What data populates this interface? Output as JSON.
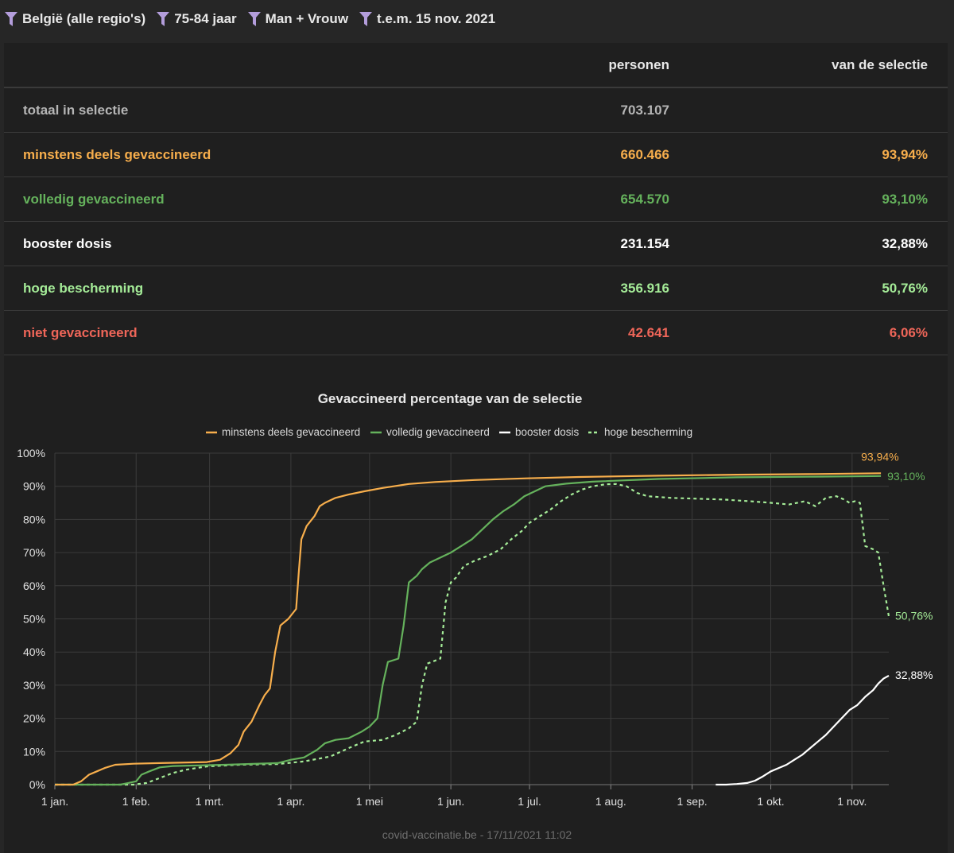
{
  "filters": [
    {
      "label": "België (alle regio's)"
    },
    {
      "label": "75-84 jaar"
    },
    {
      "label": "Man + Vrouw"
    },
    {
      "label": "t.e.m. 15 nov. 2021"
    }
  ],
  "table": {
    "headers": {
      "label": "",
      "persons": "personen",
      "selection": "van de selectie"
    },
    "rows": [
      {
        "label": "totaal in selectie",
        "persons": "703.107",
        "pct": ""
      },
      {
        "label": "minstens deels gevaccineerd",
        "persons": "660.466",
        "pct": "93,94%"
      },
      {
        "label": "volledig gevaccineerd",
        "persons": "654.570",
        "pct": "93,10%"
      },
      {
        "label": "booster dosis",
        "persons": "231.154",
        "pct": "32,88%"
      },
      {
        "label": "hoge bescherming",
        "persons": "356.916",
        "pct": "50,76%"
      },
      {
        "label": "niet gevaccineerd",
        "persons": "42.641",
        "pct": "6,06%"
      }
    ]
  },
  "colors": {
    "partial": "#f7ae4c",
    "full": "#65b25c",
    "booster": "#ffffff",
    "high": "#a5ec98",
    "none": "#ef6659",
    "grid": "#3b3b3b",
    "axis_text": "#e0e0e0"
  },
  "chart_data": {
    "type": "line",
    "title": "Gevaccineerd percentage van de selectie",
    "xlabel": "",
    "ylabel": "",
    "ylim": [
      0,
      100
    ],
    "xlim": [
      0,
      318
    ],
    "x_unit": "day of year 2021",
    "yticks": [
      "0%",
      "10%",
      "20%",
      "30%",
      "40%",
      "50%",
      "60%",
      "70%",
      "80%",
      "90%",
      "100%"
    ],
    "ytick_values": [
      0,
      10,
      20,
      30,
      40,
      50,
      60,
      70,
      80,
      90,
      100
    ],
    "xticks": [
      {
        "label": "1 jan.",
        "day": 0
      },
      {
        "label": "1 feb.",
        "day": 31
      },
      {
        "label": "1 mrt.",
        "day": 59
      },
      {
        "label": "1 apr.",
        "day": 90
      },
      {
        "label": "1 mei",
        "day": 120
      },
      {
        "label": "1 jun.",
        "day": 151
      },
      {
        "label": "1 jul.",
        "day": 181
      },
      {
        "label": "1 aug.",
        "day": 212
      },
      {
        "label": "1 sep.",
        "day": 243
      },
      {
        "label": "1 okt.",
        "day": 273
      },
      {
        "label": "1 nov.",
        "day": 304
      }
    ],
    "legend": "top-center",
    "series": [
      {
        "key": "partial",
        "name": "minstens deels gevaccineerd",
        "dash": false,
        "end_label": "93,94%",
        "points": [
          [
            0,
            0
          ],
          [
            7,
            0
          ],
          [
            10,
            1
          ],
          [
            13,
            3
          ],
          [
            16,
            4
          ],
          [
            19,
            5
          ],
          [
            23,
            6
          ],
          [
            30,
            6.3
          ],
          [
            40,
            6.5
          ],
          [
            58,
            6.8
          ],
          [
            63,
            7.5
          ],
          [
            67,
            9.5
          ],
          [
            70,
            12
          ],
          [
            72,
            16
          ],
          [
            75,
            19
          ],
          [
            78,
            24
          ],
          [
            80,
            27
          ],
          [
            82,
            29
          ],
          [
            84,
            40
          ],
          [
            86,
            48
          ],
          [
            89,
            50
          ],
          [
            92,
            53
          ],
          [
            93,
            64
          ],
          [
            94,
            74
          ],
          [
            96,
            78
          ],
          [
            99,
            81
          ],
          [
            101,
            84
          ],
          [
            103,
            85
          ],
          [
            107,
            86.5
          ],
          [
            112,
            87.5
          ],
          [
            118,
            88.5
          ],
          [
            125,
            89.5
          ],
          [
            135,
            90.7
          ],
          [
            145,
            91.3
          ],
          [
            160,
            91.9
          ],
          [
            180,
            92.4
          ],
          [
            200,
            92.8
          ],
          [
            230,
            93.2
          ],
          [
            260,
            93.5
          ],
          [
            290,
            93.7
          ],
          [
            315,
            93.94
          ]
        ]
      },
      {
        "key": "full",
        "name": "volledig gevaccineerd",
        "dash": false,
        "end_label": "93,10%",
        "points": [
          [
            0,
            0
          ],
          [
            25,
            0
          ],
          [
            28,
            0.5
          ],
          [
            31,
            1
          ],
          [
            33,
            3
          ],
          [
            36,
            4
          ],
          [
            40,
            5.2
          ],
          [
            45,
            5.6
          ],
          [
            55,
            5.8
          ],
          [
            65,
            6
          ],
          [
            85,
            6.5
          ],
          [
            90,
            7.5
          ],
          [
            95,
            8.2
          ],
          [
            100,
            10.5
          ],
          [
            103,
            12.5
          ],
          [
            107,
            13.5
          ],
          [
            112,
            14
          ],
          [
            117,
            16
          ],
          [
            120,
            17.5
          ],
          [
            123,
            20
          ],
          [
            125,
            30
          ],
          [
            127,
            37
          ],
          [
            131,
            38
          ],
          [
            133,
            48
          ],
          [
            135,
            61
          ],
          [
            138,
            63
          ],
          [
            140,
            65
          ],
          [
            143,
            67
          ],
          [
            147,
            68.5
          ],
          [
            151,
            70
          ],
          [
            155,
            72
          ],
          [
            159,
            74
          ],
          [
            163,
            77
          ],
          [
            167,
            80
          ],
          [
            171,
            82.5
          ],
          [
            175,
            84.5
          ],
          [
            179,
            87
          ],
          [
            183,
            88.5
          ],
          [
            187,
            90
          ],
          [
            195,
            90.8
          ],
          [
            205,
            91.4
          ],
          [
            230,
            92.2
          ],
          [
            260,
            92.7
          ],
          [
            290,
            92.9
          ],
          [
            315,
            93.1
          ]
        ]
      },
      {
        "key": "booster",
        "name": "booster dosis",
        "dash": false,
        "end_label": "32,88%",
        "points": [
          [
            252,
            0
          ],
          [
            256,
            0
          ],
          [
            260,
            0.2
          ],
          [
            264,
            0.5
          ],
          [
            267,
            1.2
          ],
          [
            270,
            2.5
          ],
          [
            273,
            4
          ],
          [
            276,
            5
          ],
          [
            279,
            6
          ],
          [
            282,
            7.5
          ],
          [
            285,
            9
          ],
          [
            288,
            11
          ],
          [
            291,
            13
          ],
          [
            294,
            15
          ],
          [
            297,
            17.5
          ],
          [
            300,
            20
          ],
          [
            303,
            22.5
          ],
          [
            306,
            24
          ],
          [
            309,
            26.5
          ],
          [
            312,
            28.5
          ],
          [
            314,
            30.5
          ],
          [
            316,
            32
          ],
          [
            318,
            32.88
          ]
        ]
      },
      {
        "key": "high",
        "name": "hoge bescherming",
        "dash": true,
        "end_label": "50,76%",
        "points": [
          [
            0,
            0
          ],
          [
            30,
            0
          ],
          [
            35,
            0.5
          ],
          [
            40,
            2
          ],
          [
            45,
            3.5
          ],
          [
            50,
            4.5
          ],
          [
            58,
            5.5
          ],
          [
            70,
            6
          ],
          [
            85,
            6.2
          ],
          [
            95,
            7
          ],
          [
            105,
            8.5
          ],
          [
            112,
            11
          ],
          [
            118,
            13
          ],
          [
            125,
            13.5
          ],
          [
            130,
            15
          ],
          [
            135,
            17
          ],
          [
            138,
            19
          ],
          [
            140,
            30
          ],
          [
            142,
            36.5
          ],
          [
            147,
            38
          ],
          [
            149,
            55
          ],
          [
            151,
            61
          ],
          [
            153,
            62.5
          ],
          [
            156,
            66
          ],
          [
            160,
            67.5
          ],
          [
            165,
            69
          ],
          [
            170,
            71
          ],
          [
            174,
            74
          ],
          [
            178,
            76.5
          ],
          [
            181,
            79
          ],
          [
            185,
            81
          ],
          [
            189,
            83
          ],
          [
            193,
            85.5
          ],
          [
            197,
            87.5
          ],
          [
            201,
            89
          ],
          [
            205,
            90
          ],
          [
            210,
            90.6
          ],
          [
            214,
            90.7
          ],
          [
            218,
            90
          ],
          [
            222,
            88
          ],
          [
            226,
            87
          ],
          [
            235,
            86.5
          ],
          [
            255,
            86
          ],
          [
            265,
            85.5
          ],
          [
            273,
            85
          ],
          [
            280,
            84.5
          ],
          [
            286,
            85.5
          ],
          [
            290,
            84
          ],
          [
            294,
            86.5
          ],
          [
            298,
            87
          ],
          [
            301,
            86
          ],
          [
            303,
            85
          ],
          [
            305,
            85.5
          ],
          [
            307,
            85
          ],
          [
            309,
            72
          ],
          [
            312,
            71
          ],
          [
            314,
            70
          ],
          [
            316,
            60
          ],
          [
            318,
            50.76
          ]
        ]
      }
    ]
  },
  "footer": "covid-vaccinatie.be - 17/11/2021 11:02"
}
